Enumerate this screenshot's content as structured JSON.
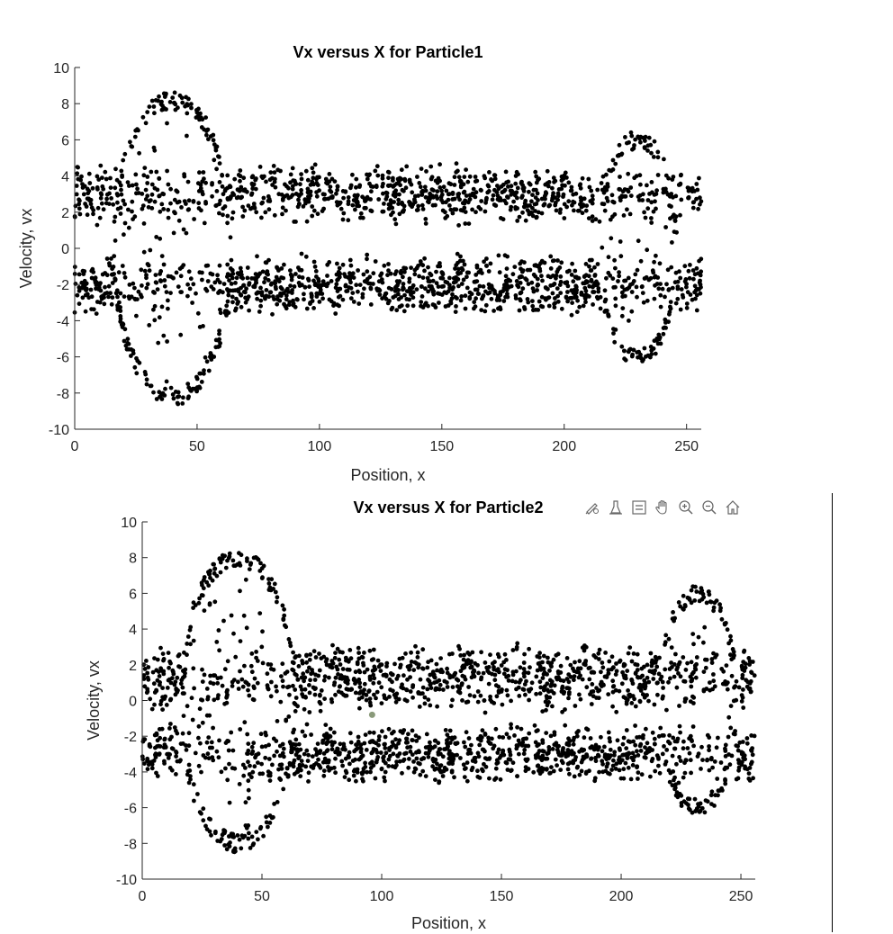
{
  "toolbar": {
    "buttons": [
      {
        "name": "brush-icon",
        "label": "Brush"
      },
      {
        "name": "data-tips-icon",
        "label": "Data Tips"
      },
      {
        "name": "legend-icon",
        "label": "Legend"
      },
      {
        "name": "pan-icon",
        "label": "Pan"
      },
      {
        "name": "zoom-in-icon",
        "label": "Zoom In"
      },
      {
        "name": "zoom-out-icon",
        "label": "Zoom Out"
      },
      {
        "name": "home-icon",
        "label": "Restore View"
      }
    ]
  },
  "chart_data": [
    {
      "type": "scatter",
      "title": "Vx versus X for Particle1",
      "xlabel": "Position, x",
      "ylabel": "Velocity, vx",
      "xlim": [
        0,
        256
      ],
      "ylim": [
        -10,
        10
      ],
      "xticks": [
        0,
        50,
        100,
        150,
        200,
        250
      ],
      "yticks": [
        -10,
        -8,
        -6,
        -4,
        -2,
        0,
        2,
        4,
        6,
        8,
        10
      ],
      "marker_color": "#000000",
      "grid": false,
      "structure": {
        "background_band": {
          "x": [
            0,
            256
          ],
          "upper": [
            2,
            4
          ],
          "lower": [
            -3,
            -1
          ]
        },
        "vortices": [
          {
            "x_center": 40,
            "x_halfwidth": 24,
            "amplitude": 8.2
          },
          {
            "x_center": 230,
            "x_halfwidth": 16,
            "amplitude": 6.0
          }
        ]
      }
    },
    {
      "type": "scatter",
      "title": "Vx versus X for Particle2",
      "xlabel": "Position, x",
      "ylabel": "Velocity, vx",
      "xlim": [
        0,
        256
      ],
      "ylim": [
        -10,
        10
      ],
      "xticks": [
        0,
        50,
        100,
        150,
        200,
        250
      ],
      "yticks": [
        -10,
        -8,
        -6,
        -4,
        -2,
        0,
        2,
        4,
        6,
        8,
        10
      ],
      "marker_color": "#000000",
      "grid": false,
      "highlight_point": {
        "x": 96,
        "y": -0.8,
        "color": "#8a9a7a"
      },
      "structure": {
        "background_band": {
          "x": [
            0,
            256
          ],
          "upper": [
            0,
            2.5
          ],
          "lower": [
            -4,
            -2
          ]
        },
        "vortices": [
          {
            "x_center": 40,
            "x_halfwidth": 24,
            "amplitude": 8.0
          },
          {
            "x_center": 232,
            "x_halfwidth": 16,
            "amplitude": 6.0
          }
        ]
      }
    }
  ]
}
